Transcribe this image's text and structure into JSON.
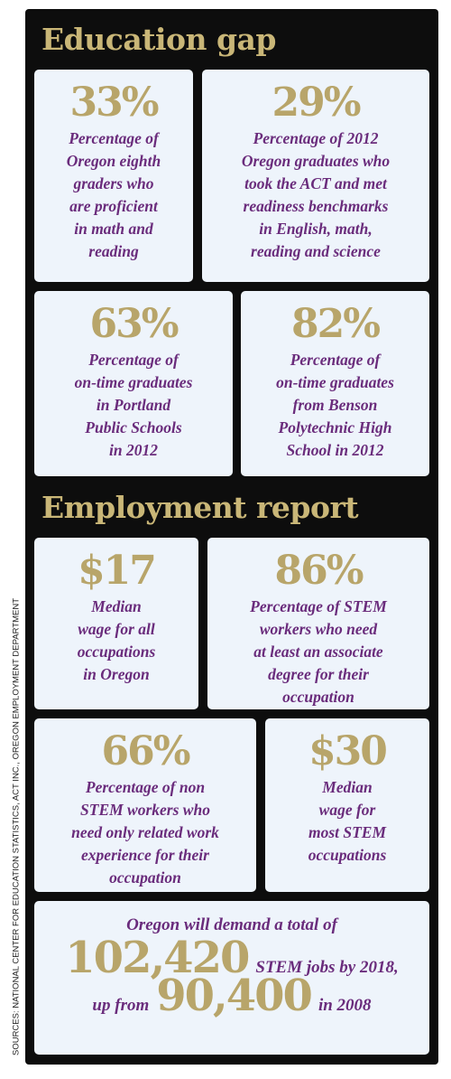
{
  "sources": "SOURCES: NATIONAL CENTER FOR EDUCATION STATISTICS, ACT INC., OREGON EMPLOYMENT DEPARTMENT",
  "sections": [
    {
      "heading": "Education gap",
      "cards": [
        {
          "stat": "33%",
          "lines": [
            "Percentage of",
            "Oregon eighth",
            "graders who",
            "are proficient",
            "in math and",
            "reading"
          ]
        },
        {
          "stat": "29%",
          "lines": [
            "Percentage of 2012",
            "Oregon graduates who",
            "took the ACT and met",
            "readiness benchmarks",
            "in English, math,",
            "reading and science"
          ]
        },
        {
          "stat": "63%",
          "lines": [
            "Percentage of",
            "on-time graduates",
            "in Portland",
            "Public Schools",
            "in 2012"
          ]
        },
        {
          "stat": "82%",
          "lines": [
            "Percentage of",
            "on-time graduates",
            "from Benson",
            "Polytechnic High",
            "School in 2012"
          ]
        }
      ]
    },
    {
      "heading": "Employment report",
      "cards": [
        {
          "stat": "$17",
          "lines": [
            "Median",
            "wage for all",
            "occupations",
            "in Oregon"
          ]
        },
        {
          "stat": "86%",
          "lines": [
            "Percentage of STEM",
            "workers who need",
            "at least an associate",
            "degree for their",
            "occupation"
          ]
        },
        {
          "stat": "66%",
          "lines": [
            "Percentage of non",
            "STEM workers who",
            "need only related work",
            "experience for their",
            "occupation"
          ]
        },
        {
          "stat": "$30",
          "lines": [
            "Median",
            "wage for",
            "most STEM",
            "occupations"
          ]
        }
      ]
    }
  ],
  "summary": {
    "intro": "Oregon will demand a total of",
    "number1": "102,420",
    "text1": "STEM jobs by 2018,",
    "text2": "up from",
    "number2": "90,400",
    "text3": "in 2008"
  }
}
